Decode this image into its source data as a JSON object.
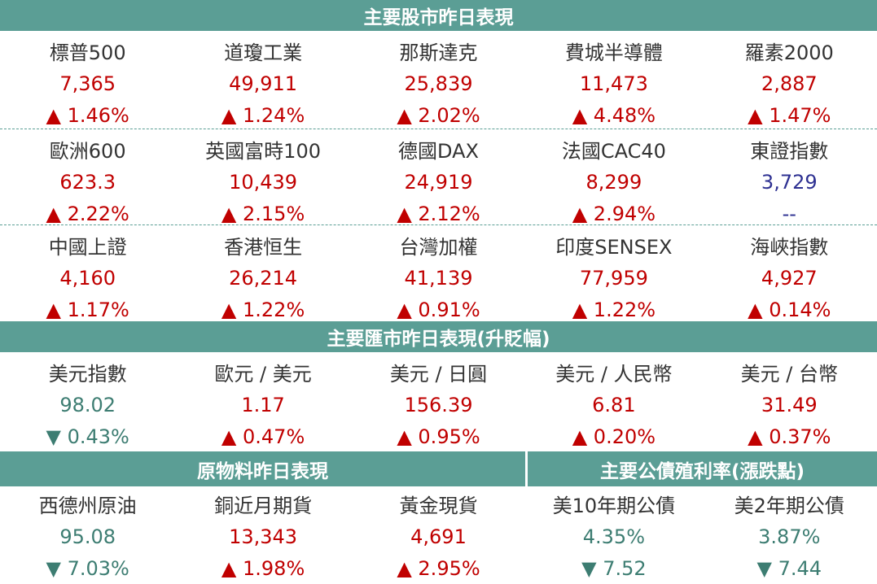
{
  "sections": [
    {
      "title": "主要股市昨日表現",
      "rows": [
        [
          {
            "name": "標普500",
            "value": "7,365",
            "change": "▲ 1.46%"
          },
          {
            "name": "道瓊工業",
            "value": "49,911",
            "change": "▲ 1.24%"
          },
          {
            "name": "那斯達克",
            "value": "25,839",
            "change": "▲ 2.02%"
          },
          {
            "name": "費城半導體",
            "value": "11,473",
            "change": "▲ 4.48%"
          },
          {
            "name": "羅素2000",
            "value": "2,887",
            "change": "▲ 1.47%"
          }
        ],
        [
          {
            "name": "歐洲600",
            "value": "623.3",
            "change": "▲ 2.22%"
          },
          {
            "name": "英國富時100",
            "value": "10,439",
            "change": "▲ 2.15%"
          },
          {
            "name": "德國DAX",
            "value": "24,919",
            "change": "▲ 2.12%"
          },
          {
            "name": "法國CAC40",
            "value": "8,299",
            "change": "▲ 2.94%"
          },
          {
            "name": "東證指數",
            "value": "3,729",
            "change": "--"
          }
        ],
        [
          {
            "name": "中國上證",
            "value": "4,160",
            "change": "▲ 1.17%"
          },
          {
            "name": "香港恒生",
            "value": "26,214",
            "change": "▲ 1.22%"
          },
          {
            "name": "台灣加權",
            "value": "41,139",
            "change": "▲ 0.91%"
          },
          {
            "name": "印度SENSEX",
            "value": "77,959",
            "change": "▲ 1.22%"
          },
          {
            "name": "海峽指數",
            "value": "4,927",
            "change": "▲ 0.14%"
          }
        ]
      ]
    },
    {
      "title": "主要匯市昨日表現(升貶幅)",
      "rows": [
        [
          {
            "name": "美元指數",
            "value": "98.02",
            "change": "▼ 0.43%"
          },
          {
            "name": "歐元 / 美元",
            "value": "1.17",
            "change": "▲ 0.47%"
          },
          {
            "name": "美元 / 日圓",
            "value": "156.39",
            "change": "▲ 0.95%"
          },
          {
            "name": "美元 / 人民幣",
            "value": "6.81",
            "change": "▲ 0.20%"
          },
          {
            "name": "美元 / 台幣",
            "value": "31.49",
            "change": "▲ 0.37%"
          }
        ]
      ]
    }
  ],
  "bottom": {
    "titles": [
      "原物料昨日表現",
      "主要公債殖利率(漲跌點)"
    ],
    "row": [
      {
        "name": "西德州原油",
        "value": "95.08",
        "change": "▼ 7.03%"
      },
      {
        "name": "銅近月期貨",
        "value": "13,343",
        "change": "▲ 1.98%"
      },
      {
        "name": "黃金現貨",
        "value": "4,691",
        "change": "▲ 2.95%"
      },
      {
        "name": "美10年期公債",
        "value": "4.35%",
        "change": "▼ 7.52"
      },
      {
        "name": "美2年期公債",
        "value": "3.87%",
        "change": "▼ 7.44"
      }
    ]
  }
}
